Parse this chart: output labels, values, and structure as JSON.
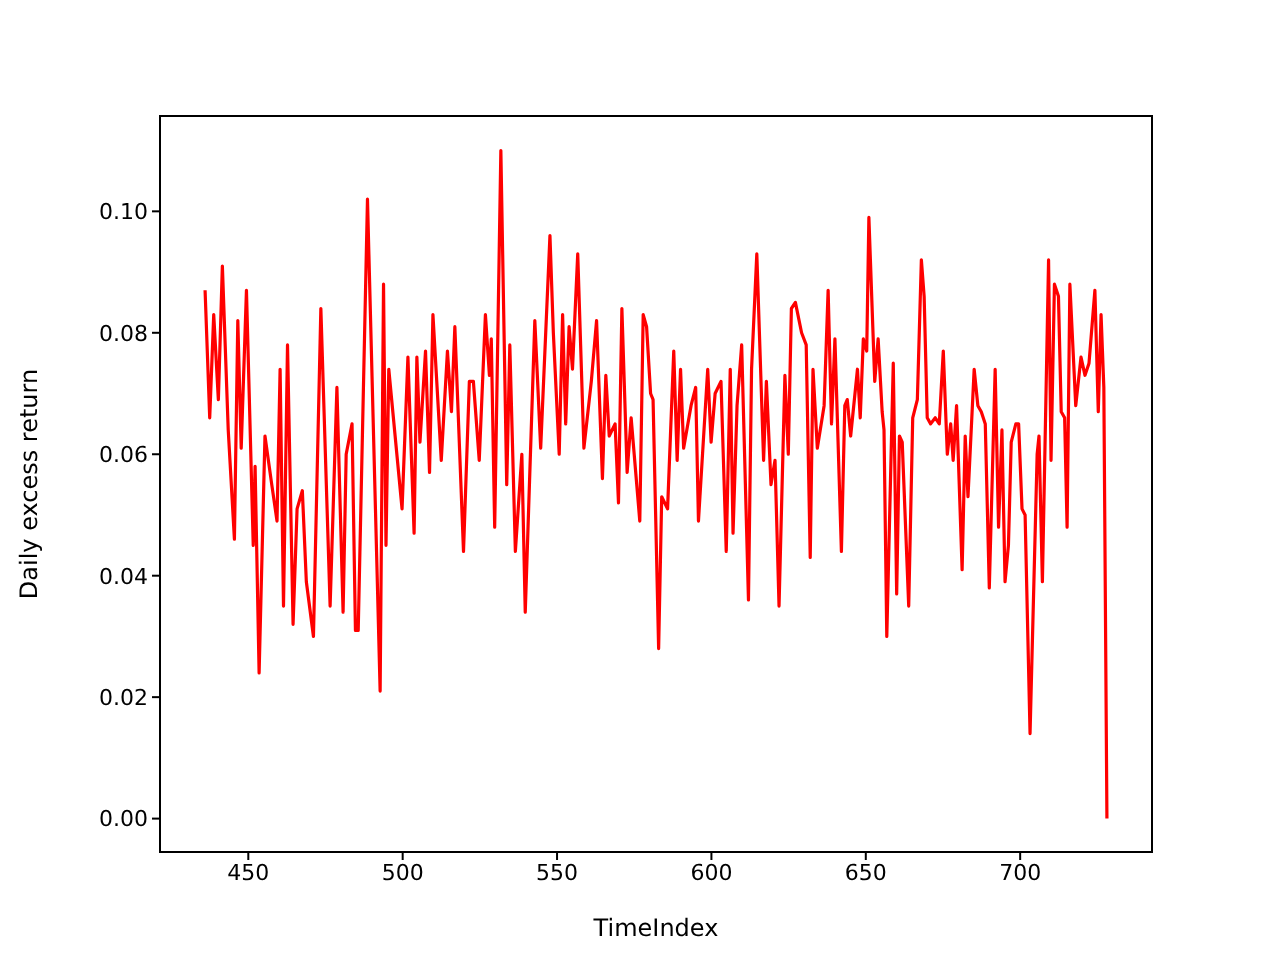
{
  "chart_data": {
    "type": "line",
    "xlabel": "TimeIndex",
    "ylabel": "Daily excess return",
    "xlim": [
      421.4,
      742.7
    ],
    "xticks": [
      450,
      500,
      550,
      600,
      650,
      700
    ],
    "ylim": [
      -0.0055,
      0.1157
    ],
    "yticks": [
      {
        "value": 0,
        "label": "0.00"
      },
      {
        "value": 0.02,
        "label": "0.02"
      },
      {
        "value": 0.04,
        "label": "0.04"
      },
      {
        "value": 0.06,
        "label": "0.06"
      },
      {
        "value": 0.08,
        "label": "0.08"
      },
      {
        "value": 0.1,
        "label": "0.10"
      }
    ],
    "line_style": "solid",
    "marker": "none",
    "series": [
      {
        "color": "#ff0000",
        "x": [
          436.0,
          437.5,
          438.8,
          440.3,
          441.6,
          443.5,
          445.5,
          446.6,
          447.7,
          449.4,
          451.6,
          452.2,
          453.5,
          455.4,
          457.6,
          459.3,
          460.3,
          461.4,
          462.7,
          464.5,
          465.8,
          467.5,
          468.8,
          471.1,
          473.5,
          476.5,
          478.7,
          480.7,
          481.7,
          483.6,
          484.7,
          485.6,
          488.6,
          492.7,
          493.8,
          494.6,
          495.5,
          499.8,
          501.7,
          503.7,
          504.6,
          505.6,
          507.4,
          508.7,
          509.8,
          512.5,
          514.5,
          515.8,
          516.9,
          519.7,
          521.6,
          522.9,
          524.8,
          526.8,
          528.1,
          528.7,
          529.8,
          531.8,
          533.7,
          534.7,
          536.5,
          538.6,
          539.7,
          542.8,
          544.7,
          547.7,
          548.8,
          550.7,
          551.8,
          552.8,
          553.9,
          555.0,
          556.7,
          558.7,
          561.1,
          562.8,
          564.7,
          565.8,
          566.9,
          568.8,
          569.9,
          571.0,
          572.7,
          574.0,
          576.8,
          577.9,
          579.0,
          580.3,
          581.1,
          582.9,
          583.9,
          585.8,
          587.8,
          588.9,
          590.0,
          591.0,
          593.4,
          594.9,
          595.8,
          598.8,
          599.9,
          601.2,
          603.1,
          604.8,
          606.1,
          607.0,
          608.3,
          609.8,
          612.0,
          613.0,
          614.7,
          616.9,
          617.8,
          619.3,
          620.6,
          621.9,
          623.8,
          624.9,
          625.9,
          627.2,
          629.2,
          630.7,
          632.0,
          632.9,
          634.3,
          636.5,
          637.8,
          638.9,
          640.0,
          642.1,
          643.2,
          644.0,
          645.1,
          647.3,
          648.2,
          649.2,
          650.3,
          651.0,
          652.9,
          654.0,
          655.3,
          655.9,
          656.8,
          658.9,
          660.0,
          660.9,
          661.8,
          663.9,
          665.2,
          666.7,
          668.0,
          668.9,
          669.9,
          671.0,
          672.5,
          673.8,
          675.1,
          676.4,
          677.5,
          678.3,
          679.4,
          681.2,
          682.2,
          683.1,
          685.1,
          686.3,
          687.4,
          688.7,
          690.0,
          691.9,
          693.0,
          694.1,
          695.1,
          696.2,
          697.1,
          698.6,
          699.5,
          700.6,
          701.6,
          703.2,
          705.5,
          706.1,
          707.2,
          709.2,
          710.0,
          711.1,
          712.4,
          713.3,
          714.4,
          715.2,
          716.1,
          718.0,
          719.7,
          721.0,
          722.3,
          724.2,
          725.3,
          726.2,
          727.1,
          728.1
        ],
        "values": [
          0.087,
          0.066,
          0.083,
          0.069,
          0.091,
          0.064,
          0.046,
          0.082,
          0.061,
          0.087,
          0.045,
          0.058,
          0.024,
          0.063,
          0.055,
          0.049,
          0.074,
          0.035,
          0.078,
          0.032,
          0.051,
          0.054,
          0.039,
          0.03,
          0.084,
          0.035,
          0.071,
          0.034,
          0.06,
          0.065,
          0.031,
          0.031,
          0.102,
          0.021,
          0.088,
          0.045,
          0.074,
          0.051,
          0.076,
          0.047,
          0.076,
          0.062,
          0.077,
          0.057,
          0.083,
          0.059,
          0.077,
          0.067,
          0.081,
          0.044,
          0.072,
          0.072,
          0.059,
          0.083,
          0.073,
          0.079,
          0.048,
          0.11,
          0.055,
          0.078,
          0.044,
          0.06,
          0.034,
          0.082,
          0.061,
          0.096,
          0.08,
          0.06,
          0.083,
          0.065,
          0.081,
          0.074,
          0.093,
          0.061,
          0.072,
          0.082,
          0.056,
          0.073,
          0.063,
          0.065,
          0.052,
          0.084,
          0.057,
          0.066,
          0.049,
          0.083,
          0.081,
          0.07,
          0.069,
          0.028,
          0.053,
          0.051,
          0.077,
          0.059,
          0.074,
          0.061,
          0.068,
          0.071,
          0.049,
          0.074,
          0.062,
          0.07,
          0.072,
          0.044,
          0.074,
          0.047,
          0.068,
          0.078,
          0.036,
          0.074,
          0.093,
          0.059,
          0.072,
          0.055,
          0.059,
          0.035,
          0.073,
          0.06,
          0.084,
          0.085,
          0.08,
          0.078,
          0.043,
          0.074,
          0.061,
          0.068,
          0.087,
          0.065,
          0.079,
          0.044,
          0.068,
          0.069,
          0.063,
          0.074,
          0.066,
          0.079,
          0.077,
          0.099,
          0.072,
          0.079,
          0.067,
          0.064,
          0.03,
          0.075,
          0.037,
          0.063,
          0.062,
          0.035,
          0.066,
          0.069,
          0.092,
          0.086,
          0.066,
          0.065,
          0.066,
          0.065,
          0.077,
          0.06,
          0.065,
          0.059,
          0.068,
          0.041,
          0.063,
          0.053,
          0.074,
          0.068,
          0.067,
          0.065,
          0.038,
          0.074,
          0.048,
          0.064,
          0.039,
          0.045,
          0.062,
          0.065,
          0.065,
          0.051,
          0.05,
          0.014,
          0.06,
          0.063,
          0.039,
          0.092,
          0.059,
          0.088,
          0.086,
          0.067,
          0.066,
          0.048,
          0.088,
          0.068,
          0.076,
          0.073,
          0.075,
          0.087,
          0.067,
          0.083,
          0.071,
          0.0
        ]
      }
    ]
  }
}
